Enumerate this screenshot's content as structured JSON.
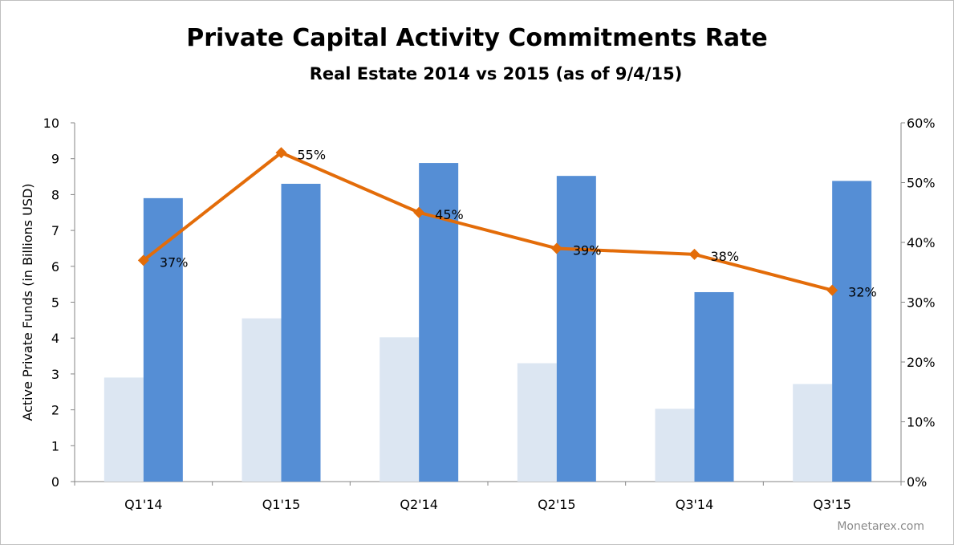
{
  "chart_data": {
    "type": "bar",
    "title": "Private Capital Activity Commitments Rate",
    "subtitle": "Real Estate 2014 vs 2015 (as of 9/4/15)",
    "ylabel": "Active Private Funds (in Billions USD)",
    "categories": [
      "Q1'14",
      "Q1'15",
      "Q2'14",
      "Q2'15",
      "Q3'14",
      "Q3'15"
    ],
    "series": [
      {
        "type": "bar",
        "axis": "left",
        "color": "#dce6f2",
        "values": [
          2.9,
          4.55,
          4.02,
          3.3,
          2.03,
          2.72
        ]
      },
      {
        "type": "bar",
        "axis": "left",
        "color": "#558ed5",
        "values": [
          7.9,
          8.3,
          8.88,
          8.52,
          5.28,
          8.38
        ]
      },
      {
        "type": "line",
        "axis": "right",
        "color": "#e36c09",
        "values": [
          37,
          55,
          45,
          39,
          38,
          32
        ],
        "labels": [
          "37%",
          "55%",
          "45%",
          "39%",
          "38%",
          "32%"
        ]
      }
    ],
    "ylim": [
      0,
      10
    ],
    "yticks": [
      "0",
      "1",
      "2",
      "3",
      "4",
      "5",
      "6",
      "7",
      "8",
      "9",
      "10"
    ],
    "y2lim": [
      0,
      60
    ],
    "y2ticks": [
      "0%",
      "10%",
      "20%",
      "30%",
      "40%",
      "50%",
      "60%"
    ],
    "grid": false,
    "legend": "none"
  },
  "watermark": "Monetarex.com"
}
